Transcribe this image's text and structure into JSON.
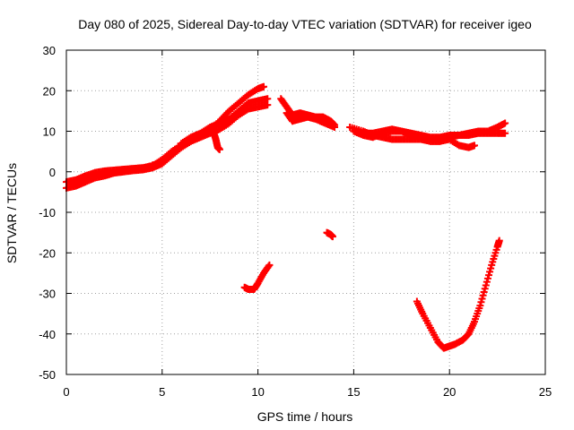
{
  "chart_data": {
    "type": "scatter",
    "title": "Day 080 of 2025, Sidereal Day-to-day VTEC variation (SDTVAR) for receiver igeo",
    "xlabel": "GPS time / hours",
    "ylabel": "SDTVAR / TECUs",
    "xlim": [
      0,
      25
    ],
    "ylim": [
      -50,
      30
    ],
    "xticks": [
      0,
      5,
      10,
      15,
      20,
      25
    ],
    "yticks": [
      -50,
      -40,
      -30,
      -20,
      -10,
      0,
      10,
      20,
      30
    ],
    "grid": true,
    "marker": "plus",
    "color": "#ff0000",
    "series": [
      {
        "name": "arc-1",
        "points": [
          [
            0.0,
            -2.5
          ],
          [
            0.5,
            -2.0
          ],
          [
            1.0,
            -1.0
          ],
          [
            1.5,
            -0.2
          ],
          [
            2.0,
            0.2
          ],
          [
            2.5,
            0.4
          ],
          [
            3.0,
            0.6
          ],
          [
            3.5,
            0.8
          ],
          [
            4.0,
            1.0
          ],
          [
            4.5,
            1.5
          ],
          [
            5.0,
            3.0
          ],
          [
            5.5,
            5.0
          ],
          [
            6.0,
            6.5
          ],
          [
            6.5,
            8.0
          ],
          [
            7.0,
            9.0
          ],
          [
            7.5,
            10.5
          ],
          [
            8.0,
            12.5
          ],
          [
            8.5,
            15.0
          ],
          [
            9.0,
            17.0
          ],
          [
            9.5,
            19.0
          ],
          [
            10.0,
            20.5
          ],
          [
            10.3,
            21.0
          ]
        ]
      },
      {
        "name": "arc-2",
        "points": [
          [
            0.0,
            -4.0
          ],
          [
            0.5,
            -3.5
          ],
          [
            1.0,
            -2.5
          ],
          [
            1.5,
            -1.5
          ],
          [
            2.0,
            -1.0
          ],
          [
            2.5,
            -0.3
          ],
          [
            3.0,
            0.0
          ],
          [
            3.5,
            0.3
          ],
          [
            4.0,
            0.5
          ],
          [
            4.5,
            1.0
          ],
          [
            5.0,
            2.0
          ],
          [
            5.5,
            4.0
          ],
          [
            6.0,
            6.0
          ],
          [
            6.5,
            7.5
          ],
          [
            7.0,
            8.5
          ],
          [
            7.5,
            9.5
          ],
          [
            8.0,
            10.5
          ],
          [
            8.5,
            12.0
          ],
          [
            9.0,
            14.0
          ],
          [
            9.5,
            15.5
          ],
          [
            10.0,
            16.0
          ],
          [
            10.5,
            16.5
          ]
        ]
      },
      {
        "name": "arc-3",
        "points": [
          [
            0.3,
            -3.0
          ],
          [
            1.0,
            -1.8
          ],
          [
            2.0,
            -0.5
          ],
          [
            3.0,
            0.2
          ],
          [
            4.0,
            0.8
          ],
          [
            5.0,
            2.5
          ],
          [
            6.0,
            7.0
          ],
          [
            6.5,
            8.5
          ],
          [
            7.0,
            9.5
          ],
          [
            7.5,
            11.0
          ],
          [
            8.0,
            12.0
          ],
          [
            8.5,
            13.0
          ],
          [
            9.0,
            15.0
          ],
          [
            9.5,
            17.0
          ],
          [
            10.0,
            17.5
          ],
          [
            10.5,
            18.0
          ]
        ]
      },
      {
        "name": "arc-4",
        "points": [
          [
            7.7,
            9.5
          ],
          [
            7.8,
            8.0
          ],
          [
            7.9,
            6.0
          ],
          [
            8.0,
            5.5
          ]
        ]
      },
      {
        "name": "arc-5",
        "points": [
          [
            11.2,
            18.0
          ],
          [
            11.5,
            16.0
          ],
          [
            11.8,
            14.0
          ],
          [
            12.2,
            14.5
          ],
          [
            12.6,
            14.0
          ],
          [
            13.0,
            13.5
          ],
          [
            13.4,
            13.5
          ],
          [
            13.8,
            12.5
          ],
          [
            14.0,
            11.5
          ]
        ]
      },
      {
        "name": "arc-6",
        "points": [
          [
            11.5,
            14.5
          ],
          [
            11.8,
            12.5
          ],
          [
            12.2,
            13.0
          ],
          [
            12.6,
            13.5
          ],
          [
            13.0,
            13.0
          ],
          [
            13.5,
            12.0
          ],
          [
            14.0,
            11.0
          ]
        ]
      },
      {
        "name": "arc-7",
        "points": [
          [
            14.8,
            11.0
          ],
          [
            15.5,
            10.0
          ],
          [
            16.0,
            9.0
          ],
          [
            16.5,
            8.5
          ],
          [
            17.0,
            8.0
          ],
          [
            17.5,
            8.0
          ],
          [
            18.0,
            8.0
          ],
          [
            18.5,
            8.0
          ],
          [
            19.0,
            7.5
          ],
          [
            19.5,
            7.5
          ],
          [
            20.0,
            8.0
          ],
          [
            20.5,
            6.5
          ],
          [
            21.0,
            6.0
          ],
          [
            21.3,
            6.5
          ]
        ]
      },
      {
        "name": "arc-8",
        "points": [
          [
            15.0,
            10.0
          ],
          [
            15.5,
            9.0
          ],
          [
            16.0,
            8.5
          ],
          [
            16.5,
            9.5
          ],
          [
            17.0,
            10.0
          ],
          [
            17.5,
            10.0
          ],
          [
            18.0,
            9.5
          ],
          [
            18.5,
            9.0
          ],
          [
            19.0,
            8.5
          ],
          [
            19.5,
            8.5
          ],
          [
            20.0,
            9.0
          ],
          [
            20.5,
            9.0
          ],
          [
            21.0,
            9.0
          ],
          [
            21.5,
            9.5
          ],
          [
            22.0,
            9.5
          ],
          [
            22.5,
            9.5
          ],
          [
            22.9,
            9.5
          ]
        ]
      },
      {
        "name": "arc-9",
        "points": [
          [
            15.5,
            9.5
          ],
          [
            16.0,
            9.5
          ],
          [
            16.5,
            10.0
          ],
          [
            17.0,
            10.5
          ],
          [
            17.5,
            10.0
          ],
          [
            18.0,
            9.0
          ],
          [
            18.5,
            8.5
          ],
          [
            19.0,
            8.0
          ],
          [
            19.5,
            8.0
          ],
          [
            20.0,
            8.5
          ],
          [
            20.5,
            9.0
          ],
          [
            21.0,
            9.5
          ],
          [
            21.5,
            10.0
          ],
          [
            22.0,
            10.0
          ],
          [
            22.5,
            11.0
          ],
          [
            22.9,
            12.0
          ]
        ]
      },
      {
        "name": "arc-10",
        "points": [
          [
            10.6,
            -23.0
          ],
          [
            10.3,
            -25.0
          ],
          [
            10.0,
            -27.5
          ],
          [
            9.8,
            -29.0
          ],
          [
            9.5,
            -29.0
          ],
          [
            9.3,
            -28.5
          ]
        ]
      },
      {
        "name": "arc-11",
        "points": [
          [
            13.6,
            -15.0
          ],
          [
            13.8,
            -15.5
          ],
          [
            13.9,
            -16.0
          ]
        ]
      },
      {
        "name": "arc-12",
        "points": [
          [
            18.3,
            -32.0
          ],
          [
            18.6,
            -35.0
          ],
          [
            19.0,
            -38.5
          ],
          [
            19.4,
            -42.0
          ],
          [
            19.7,
            -43.5
          ],
          [
            20.0,
            -43.0
          ],
          [
            20.3,
            -42.5
          ],
          [
            20.7,
            -41.5
          ],
          [
            21.0,
            -40.0
          ],
          [
            21.3,
            -37.0
          ],
          [
            21.6,
            -33.0
          ],
          [
            21.9,
            -28.0
          ],
          [
            22.2,
            -23.0
          ],
          [
            22.5,
            -18.5
          ],
          [
            22.6,
            -17.0
          ]
        ]
      }
    ]
  }
}
